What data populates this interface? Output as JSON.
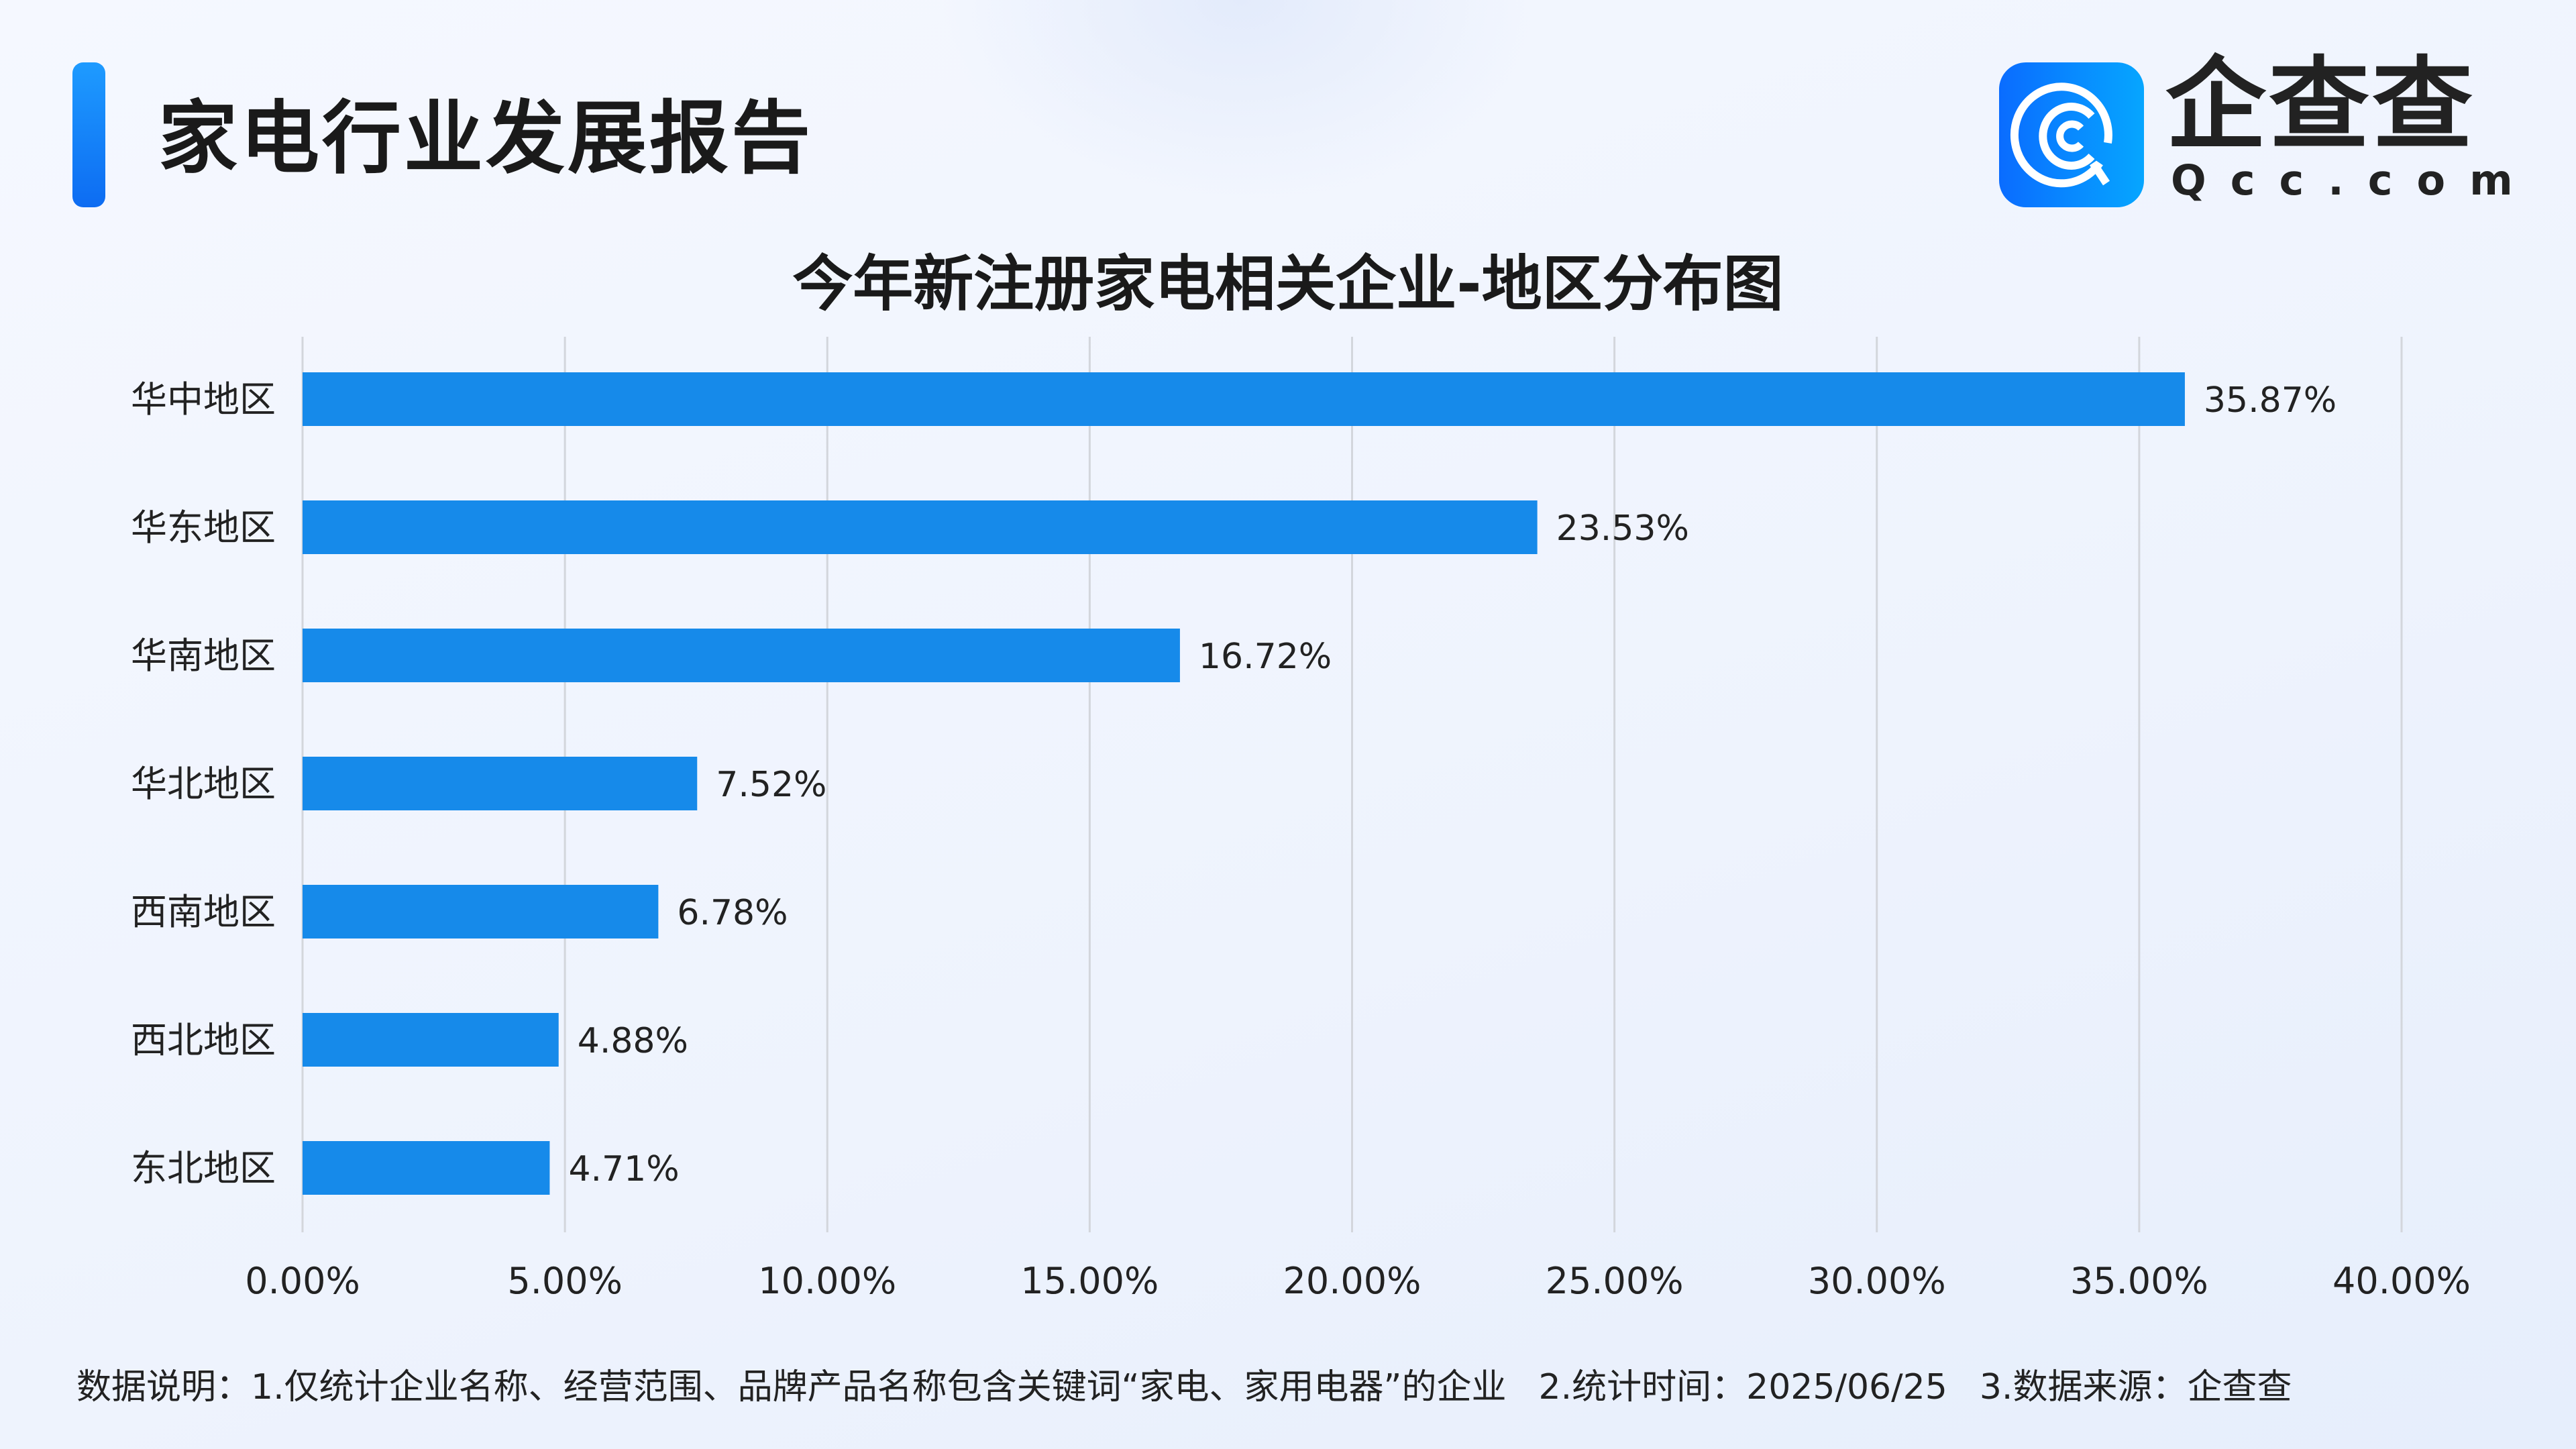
{
  "header": {
    "title": "家电行业发展报告"
  },
  "logo": {
    "cn": "企查查",
    "en": "Qcc.com",
    "brand_color": "#0a7cff"
  },
  "chart_data": {
    "type": "bar",
    "orientation": "horizontal",
    "title": "今年新注册家电相关企业-地区分布图",
    "categories": [
      "华中地区",
      "华东地区",
      "华南地区",
      "华北地区",
      "西南地区",
      "西北地区",
      "东北地区"
    ],
    "values": [
      35.87,
      23.53,
      16.72,
      7.52,
      6.78,
      4.88,
      4.71
    ],
    "value_labels": [
      "35.87%",
      "23.53%",
      "16.72%",
      "7.52%",
      "6.78%",
      "4.88%",
      "4.71%"
    ],
    "xlim": [
      0,
      40
    ],
    "xticks": [
      0,
      5,
      10,
      15,
      20,
      25,
      30,
      35,
      40
    ],
    "xtick_labels": [
      "0.00%",
      "5.00%",
      "10.00%",
      "15.00%",
      "20.00%",
      "25.00%",
      "30.00%",
      "35.00%",
      "40.00%"
    ],
    "grid": true,
    "bar_color": "#168aea"
  },
  "footer": {
    "note1": "数据说明：1.仅统计企业名称、经营范围、品牌产品名称包含关键词“家电、家用电器”的企业",
    "note2": "2.统计时间：2025/06/25",
    "note3": "3.数据来源：企查查"
  }
}
